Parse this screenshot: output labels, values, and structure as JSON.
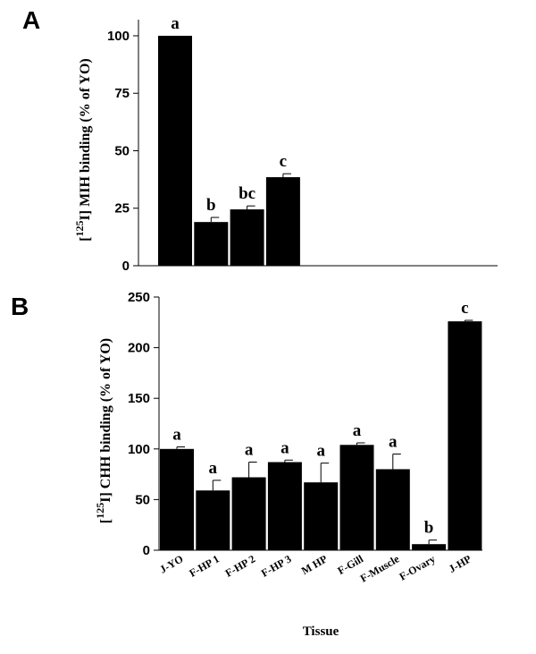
{
  "chart_data": [
    {
      "type": "bar",
      "panel": "A",
      "ylabel_pre": "[",
      "ylabel_sup": "125",
      "ylabel_post": "I] MIH binding (% of YO)",
      "categories": [
        null,
        null,
        null,
        null,
        null,
        null,
        null,
        null,
        null
      ],
      "values": [
        100,
        19,
        24.5,
        38.5,
        null,
        null,
        null,
        null,
        null
      ],
      "errors": [
        0,
        2,
        1.5,
        1.5,
        null,
        null,
        null,
        null,
        null
      ],
      "significance_labels": [
        "a",
        "b",
        "bc",
        "c",
        null,
        null,
        null,
        null,
        null
      ],
      "color": "#000000",
      "ylim": [
        0,
        107
      ],
      "yticks": [
        0,
        25,
        50,
        75,
        100
      ]
    },
    {
      "type": "bar",
      "panel": "B",
      "ylabel_pre": "[",
      "ylabel_sup": "125",
      "ylabel_post": "I] CHH binding (% of YO)",
      "xlabel": "Tissue",
      "categories": [
        "J-YO",
        "F-HP 1",
        "F-HP 2",
        "F-HP 3",
        "M HP",
        "F-Gill",
        "F-Muscle",
        "F-Ovary",
        "J-HP"
      ],
      "values": [
        100,
        59,
        72,
        87,
        67,
        104,
        80,
        6,
        226
      ],
      "errors": [
        2,
        10,
        15,
        2,
        19,
        2,
        15,
        4,
        1
      ],
      "significance_labels": [
        "a",
        "a",
        "a",
        "a",
        "a",
        "a",
        "a",
        "b",
        "c"
      ],
      "color": "#000000",
      "ylim": [
        0,
        250
      ],
      "yticks": [
        0,
        50,
        100,
        150,
        200,
        250
      ]
    }
  ]
}
